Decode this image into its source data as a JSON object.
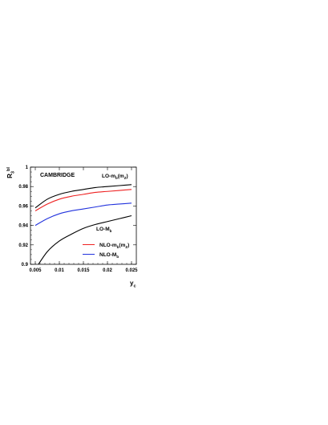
{
  "chart_data": {
    "type": "line",
    "title": "",
    "xlabel": {
      "main": "y",
      "sub": "c"
    },
    "ylabel": {
      "main": "R",
      "sub": "3",
      "sup": "bl"
    },
    "xlim": [
      0.004,
      0.026
    ],
    "ylim": [
      0.9,
      1.0
    ],
    "x_ticks": [
      {
        "value": 0.005,
        "label": "0.005"
      },
      {
        "value": 0.01,
        "label": "0.01"
      },
      {
        "value": 0.015,
        "label": "0.015"
      },
      {
        "value": 0.02,
        "label": "0.02"
      },
      {
        "value": 0.025,
        "label": "0.025"
      }
    ],
    "y_ticks": [
      {
        "value": 0.9,
        "label": "0.9"
      },
      {
        "value": 0.92,
        "label": "0.92"
      },
      {
        "value": 0.94,
        "label": "0.94"
      },
      {
        "value": 0.96,
        "label": "0.96"
      },
      {
        "value": 0.98,
        "label": "0.98"
      },
      {
        "value": 1.0,
        "label": "1"
      }
    ],
    "grid": false,
    "x": [
      0.005,
      0.0075,
      0.01,
      0.0125,
      0.015,
      0.0175,
      0.02,
      0.0225,
      0.025
    ],
    "series": [
      {
        "color": "#000000",
        "values": [
          0.958,
          0.967,
          0.972,
          0.975,
          0.977,
          0.979,
          0.98,
          0.981,
          0.982
        ]
      },
      {
        "color": "#ee2222",
        "values": [
          0.955,
          0.962,
          0.967,
          0.97,
          0.972,
          0.974,
          0.975,
          0.976,
          0.977
        ]
      },
      {
        "color": "#2233dd",
        "values": [
          0.94,
          0.947,
          0.952,
          0.955,
          0.957,
          0.959,
          0.961,
          0.962,
          0.963
        ]
      },
      {
        "color": "#000000",
        "values": [
          0.895,
          0.913,
          0.924,
          0.931,
          0.937,
          0.941,
          0.944,
          0.947,
          0.95
        ]
      }
    ],
    "annotations": {
      "cambridge": "CAMBRIDGE",
      "lo_mb": {
        "main": "LO-m",
        "sub": "b",
        "paren_open": "(m",
        "paren_sub": "Z",
        "paren_close": ")"
      },
      "lo_Mb": {
        "main": "LO-M",
        "sub": "b"
      }
    },
    "legend": {
      "placement": "lower-right",
      "entries": [
        {
          "color": "#ee2222",
          "main": "NLO-m",
          "sub": "b",
          "paren_open": "(m",
          "paren_sub": "Z",
          "paren_close": ")"
        },
        {
          "color": "#2233dd",
          "main": "NLO-M",
          "sub": "b"
        }
      ]
    }
  }
}
